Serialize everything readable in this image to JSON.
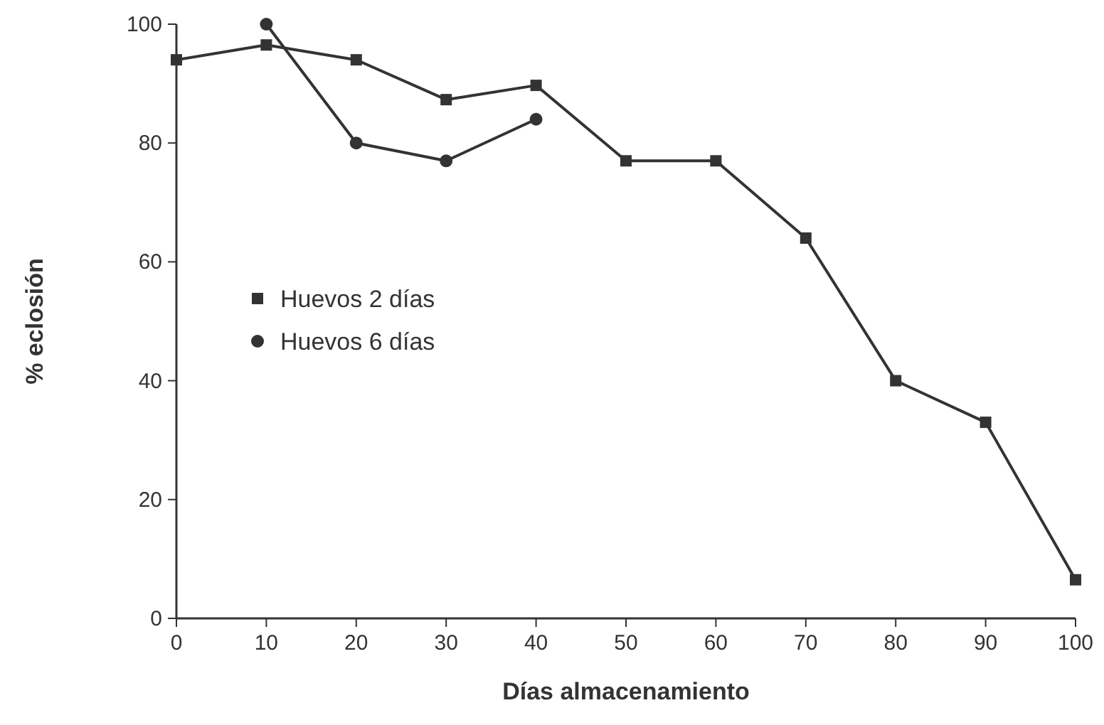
{
  "chart_data": {
    "type": "line",
    "xlabel": "Días almacenamiento",
    "ylabel": "% eclosión",
    "xlim": [
      0,
      100
    ],
    "xticks": [
      0,
      10,
      20,
      30,
      40,
      50,
      60,
      70,
      80,
      90,
      100
    ],
    "ylim": [
      0,
      100
    ],
    "yticks": [
      0,
      20,
      40,
      60,
      80,
      100
    ],
    "grid": false,
    "legend": "center left",
    "line_style": "solid",
    "series": [
      {
        "name": "Huevos 2 días",
        "color": "#333333",
        "marker": "square",
        "x": [
          0,
          10,
          20,
          30,
          40,
          50,
          60,
          70,
          80,
          90,
          100
        ],
        "values": [
          94,
          96.5,
          94,
          87.3,
          89.7,
          77,
          77,
          64,
          40,
          33,
          6.5
        ]
      },
      {
        "name": "Huevos 6 días",
        "color": "#333333",
        "marker": "circle",
        "x": [
          10,
          20,
          30,
          40
        ],
        "values": [
          100,
          80,
          77,
          84
        ]
      }
    ]
  }
}
